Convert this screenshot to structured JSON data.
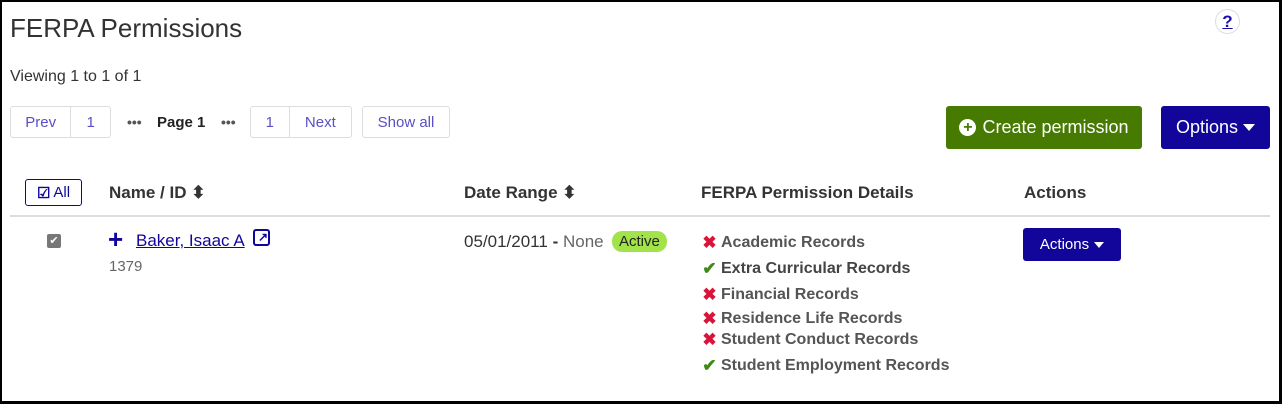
{
  "page": {
    "title": "FERPA Permissions",
    "help": "?",
    "viewing": "Viewing 1 to 1 of 1"
  },
  "pagination": {
    "prev": "Prev",
    "first": "1",
    "dots": "•••",
    "current": "Page 1",
    "last": "1",
    "next": "Next",
    "show_all": "Show all"
  },
  "toolbar": {
    "create": "Create permission",
    "options": "Options"
  },
  "table": {
    "select_all": "All",
    "headers": [
      "Name / ID",
      "Date Range",
      "FERPA Permission Details",
      "Actions"
    ],
    "rows": [
      {
        "name": "Baker, Isaac A",
        "id": "1379",
        "start": "05/01/2011",
        "sep": "-",
        "end": "None",
        "status": "Active",
        "actions": "Actions",
        "permissions": [
          {
            "label": "Academic Records",
            "granted": false
          },
          {
            "label": "Extra Curricular Records",
            "granted": true
          },
          {
            "label": "Financial Records",
            "granted": false
          },
          {
            "label": "Residence Life Records",
            "granted": false
          },
          {
            "label": "Student Conduct Records",
            "granted": false
          },
          {
            "label": "Student Employment Records",
            "granted": true
          }
        ]
      }
    ]
  },
  "colors": {
    "primary": "#12069a",
    "success": "#467a00",
    "deny": "#d8143a",
    "allow": "#3d8a16",
    "badge": "#a3e34a"
  }
}
